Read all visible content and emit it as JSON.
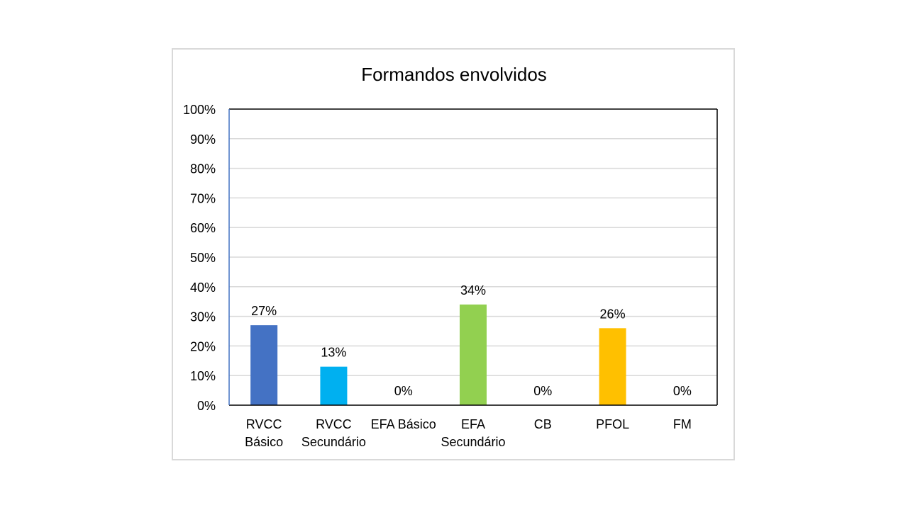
{
  "chart_data": {
    "type": "bar",
    "title": "Formandos envolvidos",
    "categories": [
      [
        "RVCC",
        "Básico"
      ],
      [
        "RVCC",
        "Secundário"
      ],
      [
        "EFA Básico"
      ],
      [
        "EFA",
        "Secundário"
      ],
      [
        "CB"
      ],
      [
        "PFOL"
      ],
      [
        "FM"
      ]
    ],
    "values": [
      27,
      13,
      0,
      34,
      0,
      26,
      0
    ],
    "value_labels": [
      "27%",
      "13%",
      "0%",
      "34%",
      "0%",
      "26%",
      "0%"
    ],
    "bar_colors": [
      "#4472c4",
      "#00b0f0",
      "#a5a5a5",
      "#92d050",
      "#a5a5a5",
      "#ffc000",
      "#a5a5a5"
    ],
    "yticks": [
      "0%",
      "10%",
      "20%",
      "30%",
      "40%",
      "50%",
      "60%",
      "70%",
      "80%",
      "90%",
      "100%"
    ],
    "ylim": [
      0,
      100
    ],
    "grid": true,
    "xlabel": "",
    "ylabel": ""
  }
}
